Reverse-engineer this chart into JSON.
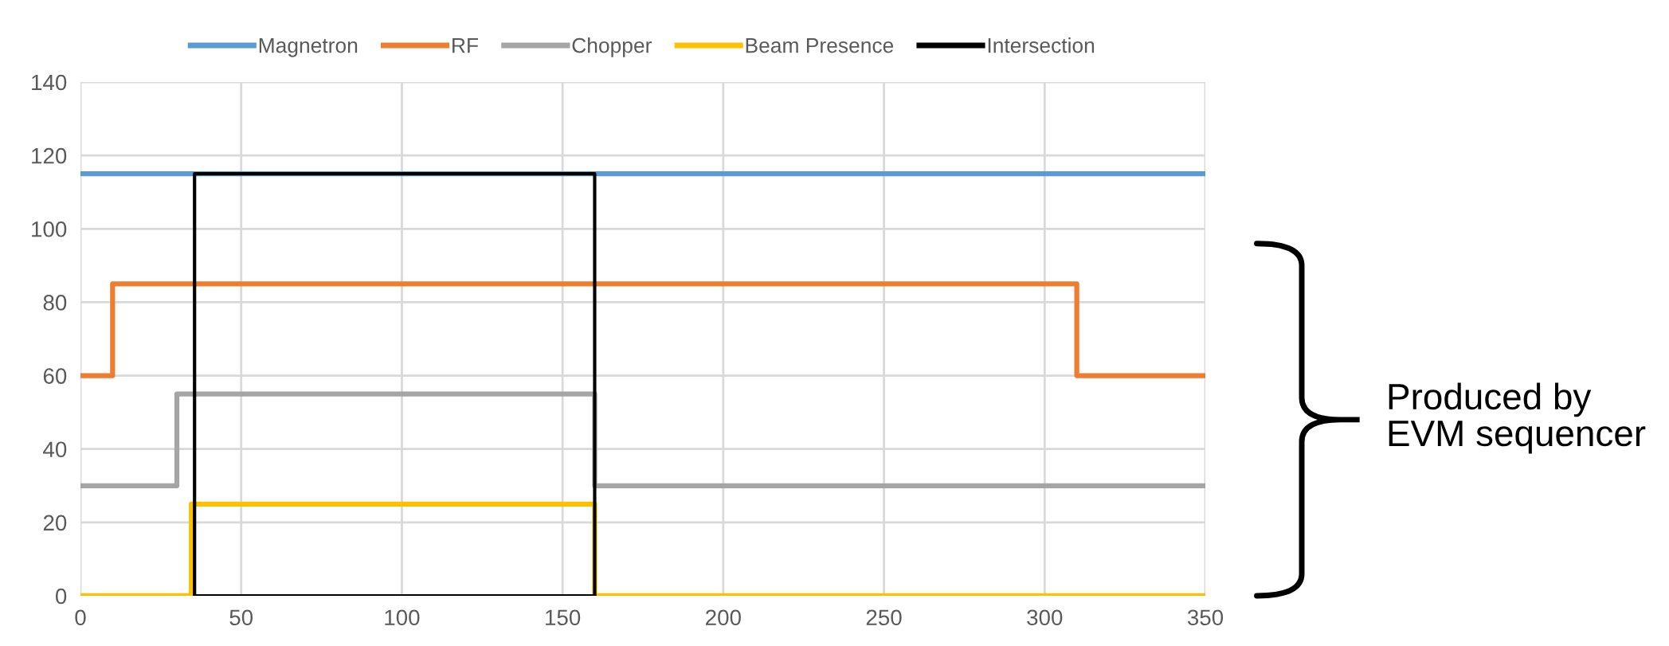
{
  "chart_data": {
    "type": "line",
    "series": [
      {
        "name": "Magnetron",
        "color": "#5b9bd5",
        "type": "step",
        "x": [
          0,
          350
        ],
        "values": [
          115,
          115
        ]
      },
      {
        "name": "RF",
        "color": "#ed7d31",
        "type": "step",
        "x": [
          0,
          10,
          310,
          350
        ],
        "values": [
          60,
          85,
          60,
          60
        ]
      },
      {
        "name": "Chopper",
        "color": "#a5a5a5",
        "type": "step",
        "x": [
          0,
          30,
          160,
          350
        ],
        "values": [
          30,
          55,
          30,
          30
        ]
      },
      {
        "name": "Beam Presence",
        "color": "#ffc000",
        "type": "step",
        "x": [
          0,
          34.5,
          160,
          350
        ],
        "values": [
          0,
          25,
          0,
          0
        ]
      },
      {
        "name": "Intersection",
        "color": "#000000",
        "x": [
          35.5,
          35.5,
          160,
          160
        ],
        "values": [
          0,
          115,
          115,
          0
        ]
      },
      {
        "color": "#000000",
        "x": [
          35.5,
          160
        ],
        "values": [
          0,
          0
        ]
      }
    ],
    "xlim": [
      0,
      350
    ],
    "xticks": [
      0,
      50,
      100,
      150,
      200,
      250,
      300,
      350
    ],
    "ylim": [
      0,
      140
    ],
    "yticks": [
      0,
      20,
      40,
      60,
      80,
      100,
      120,
      140
    ],
    "grid": true,
    "legend": "top",
    "annotations": [
      "Produced by\nEVM sequencer"
    ]
  }
}
